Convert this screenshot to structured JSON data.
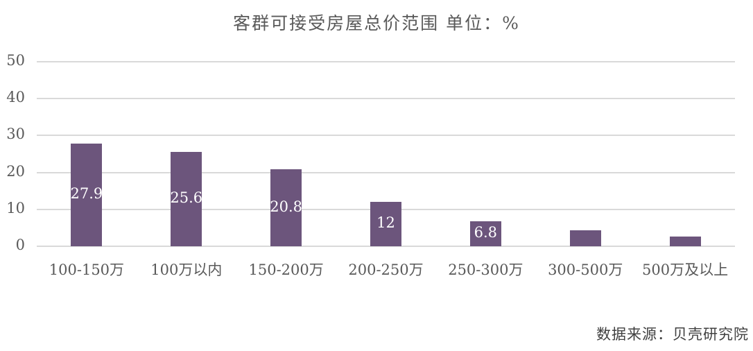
{
  "chart_data": {
    "type": "bar",
    "title": "客群可接受房屋总价范围 单位：%",
    "xlabel": "",
    "ylabel": "",
    "categories": [
      "100-150万",
      "100万以内",
      "150-200万",
      "200-250万",
      "250-300万",
      "300-500万",
      "500万及以上"
    ],
    "values": [
      27.9,
      25.6,
      20.8,
      12,
      6.8,
      4.3,
      2.6
    ],
    "data_labels": [
      "27.9",
      "25.6",
      "20.8",
      "12",
      "6.8",
      "",
      ""
    ],
    "ylim": [
      0,
      50
    ],
    "yticks": [
      "50",
      "40",
      "30",
      "20",
      "10",
      "0"
    ],
    "grid": true,
    "legend": "none",
    "bar_color": "#6c557c",
    "source": "数据来源：贝壳研究院"
  }
}
